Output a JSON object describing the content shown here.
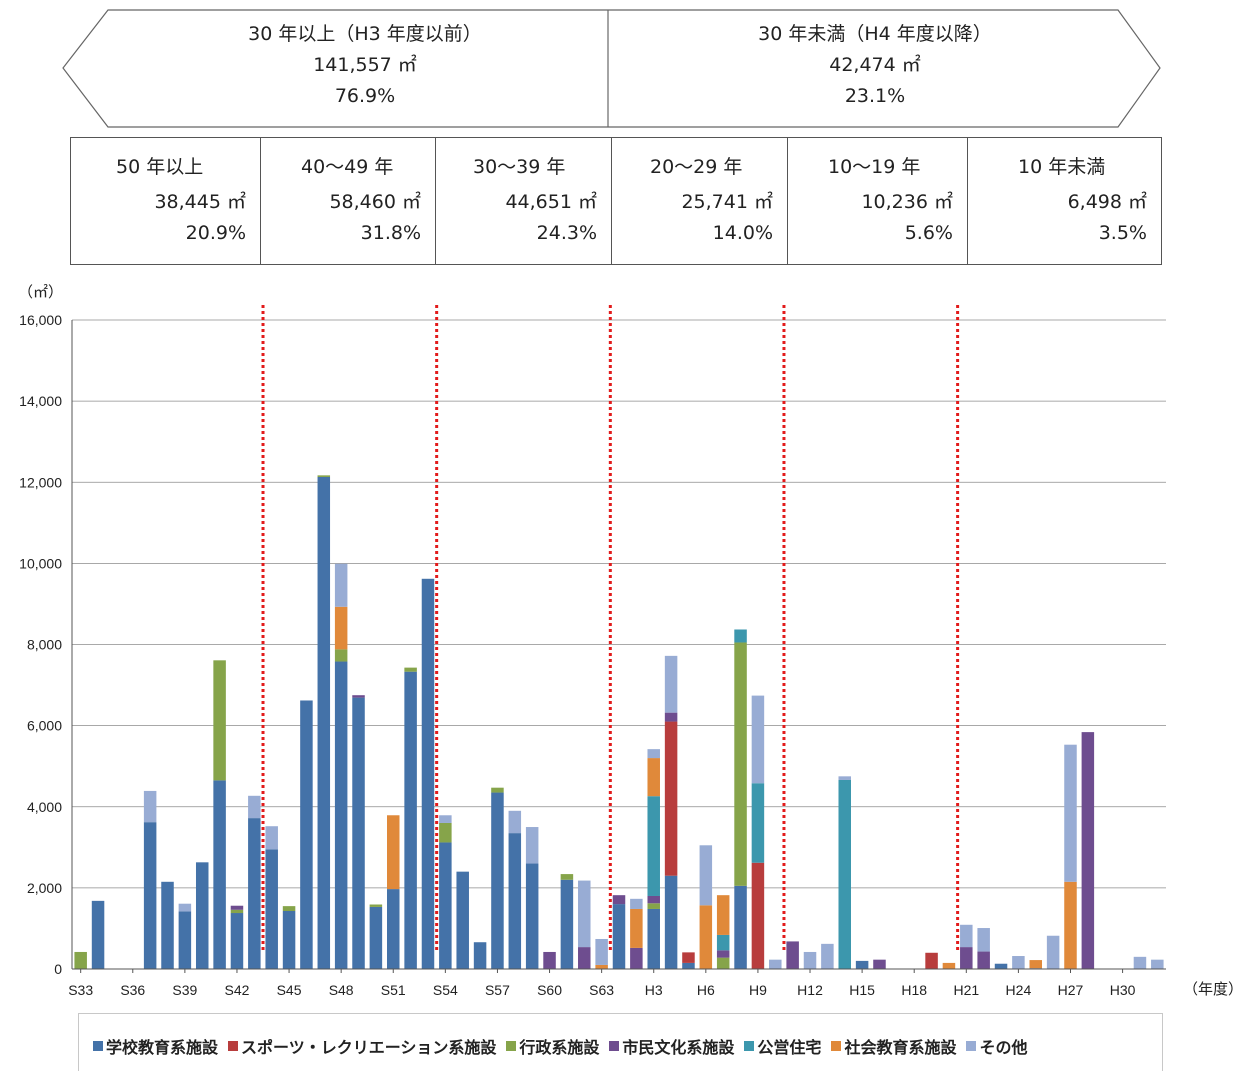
{
  "header": {
    "left": {
      "title": "30 年以上（H3 年度以前）",
      "area": "141,557 ㎡",
      "pct": "76.9%"
    },
    "right": {
      "title": "30 年未満（H4 年度以降）",
      "area": "42,474 ㎡",
      "pct": "23.1%"
    }
  },
  "age_groups": [
    {
      "label": "50 年以上",
      "area": "38,445 ㎡",
      "pct": "20.9%"
    },
    {
      "label": "40～49 年",
      "area": "58,460 ㎡",
      "pct": "31.8%"
    },
    {
      "label": "30～39 年",
      "area": "44,651 ㎡",
      "pct": "24.3%"
    },
    {
      "label": "20～29 年",
      "area": "25,741 ㎡",
      "pct": "14.0%"
    },
    {
      "label": "10～19 年",
      "area": "10,236 ㎡",
      "pct": "5.6%"
    },
    {
      "label": "10 年未満",
      "area": "6,498 ㎡",
      "pct": "3.5%"
    }
  ],
  "chart_data": {
    "type": "bar",
    "stacked": true,
    "ylabel": "（㎡）",
    "xlabel": "（年度）",
    "ylim": [
      0,
      16000
    ],
    "yticks": [
      "0",
      "2,000",
      "4,000",
      "6,000",
      "8,000",
      "10,000",
      "12,000",
      "14,000",
      "16,000"
    ],
    "grid": true,
    "legend_position": "bottom",
    "categories": [
      "S33",
      "S34",
      "S35",
      "S36",
      "S37",
      "S38",
      "S39",
      "S40",
      "S41",
      "S42",
      "S43",
      "S44",
      "S45",
      "S46",
      "S47",
      "S48",
      "S49",
      "S50",
      "S51",
      "S52",
      "S53",
      "S54",
      "S55",
      "S56",
      "S57",
      "S58",
      "S59",
      "S60",
      "S61",
      "S62",
      "S63",
      "H1",
      "H2",
      "H3",
      "H4",
      "H5",
      "H6",
      "H7",
      "H8",
      "H9",
      "H10",
      "H11",
      "H12",
      "H13",
      "H14",
      "H15",
      "H16",
      "H17",
      "H18",
      "H19",
      "H20",
      "H21",
      "H22",
      "H23",
      "H24",
      "H25",
      "H26",
      "H27",
      "H28",
      "H29",
      "H30",
      "R1",
      "R2"
    ],
    "tick_labels": [
      "S33",
      "S36",
      "S39",
      "S42",
      "S45",
      "S48",
      "S51",
      "S54",
      "S57",
      "S60",
      "S63",
      "H3",
      "H6",
      "H9",
      "H12",
      "H15",
      "H18",
      "H21",
      "H24",
      "H27",
      "H30"
    ],
    "tick_label_categories": [
      "S33",
      "S36",
      "S39",
      "S42",
      "S45",
      "S48",
      "S51",
      "S54",
      "S57",
      "S60",
      "S63",
      "H3",
      "H6",
      "H9",
      "H12",
      "H15",
      "H18",
      "H21",
      "H24",
      "H27",
      "H30"
    ],
    "series": [
      {
        "name": "学校教育系施設",
        "color": "#4472a8",
        "values": [
          0,
          1680,
          0,
          0,
          3620,
          2150,
          1420,
          2630,
          4650,
          1380,
          3720,
          2950,
          1430,
          6620,
          12130,
          7580,
          6690,
          1530,
          1970,
          7330,
          9620,
          3120,
          2400,
          660,
          4350,
          3350,
          2600,
          0,
          2200,
          0,
          0,
          1600,
          0,
          1480,
          2300,
          150,
          0,
          0,
          2050,
          0,
          0,
          0,
          0,
          0,
          0,
          200,
          0,
          0,
          0,
          0,
          0,
          0,
          0,
          130,
          0,
          20,
          0,
          0,
          0,
          0,
          0,
          0,
          0
        ]
      },
      {
        "name": "スポーツ・レクリエーション系施設",
        "color": "#b83d3d",
        "values": [
          0,
          0,
          0,
          0,
          0,
          0,
          0,
          0,
          0,
          0,
          0,
          0,
          0,
          0,
          0,
          0,
          0,
          0,
          0,
          0,
          0,
          0,
          0,
          0,
          0,
          0,
          0,
          0,
          0,
          0,
          0,
          0,
          0,
          0,
          3800,
          260,
          0,
          0,
          0,
          2620,
          0,
          0,
          0,
          0,
          0,
          0,
          0,
          0,
          0,
          400,
          0,
          0,
          0,
          0,
          0,
          0,
          0,
          0,
          0,
          0,
          0,
          0,
          0
        ]
      },
      {
        "name": "行政系施設",
        "color": "#86a44a",
        "values": [
          420,
          0,
          0,
          0,
          0,
          0,
          0,
          0,
          2960,
          80,
          0,
          0,
          120,
          0,
          40,
          300,
          0,
          60,
          0,
          100,
          0,
          480,
          0,
          0,
          120,
          0,
          0,
          0,
          140,
          0,
          0,
          0,
          0,
          140,
          0,
          0,
          0,
          280,
          6000,
          0,
          0,
          0,
          0,
          0,
          0,
          0,
          0,
          0,
          0,
          0,
          0,
          0,
          0,
          0,
          0,
          0,
          0,
          0,
          0,
          0,
          0,
          0,
          0
        ]
      },
      {
        "name": "市民文化系施設",
        "color": "#6e4d8f",
        "values": [
          0,
          0,
          0,
          0,
          0,
          0,
          0,
          0,
          0,
          100,
          0,
          0,
          0,
          0,
          0,
          0,
          60,
          0,
          0,
          0,
          0,
          0,
          0,
          0,
          0,
          0,
          0,
          420,
          0,
          540,
          0,
          220,
          520,
          180,
          220,
          0,
          0,
          180,
          0,
          0,
          0,
          680,
          0,
          0,
          0,
          0,
          230,
          0,
          0,
          0,
          0,
          540,
          430,
          0,
          0,
          0,
          0,
          0,
          5840,
          0,
          0,
          0,
          0
        ]
      },
      {
        "name": "公営住宅",
        "color": "#3c97ad",
        "values": [
          0,
          0,
          0,
          0,
          0,
          0,
          0,
          0,
          0,
          0,
          0,
          0,
          0,
          0,
          0,
          0,
          0,
          0,
          0,
          0,
          0,
          0,
          0,
          0,
          0,
          0,
          0,
          0,
          0,
          0,
          0,
          0,
          0,
          2460,
          0,
          0,
          0,
          380,
          320,
          1960,
          0,
          0,
          0,
          0,
          4660,
          0,
          0,
          0,
          0,
          0,
          0,
          0,
          0,
          0,
          0,
          0,
          0,
          0,
          0,
          0,
          0,
          0,
          0
        ]
      },
      {
        "name": "社会教育系施設",
        "color": "#e0893a",
        "values": [
          0,
          0,
          0,
          0,
          0,
          0,
          0,
          0,
          0,
          0,
          0,
          0,
          0,
          0,
          0,
          1050,
          0,
          0,
          1820,
          0,
          0,
          0,
          0,
          0,
          0,
          0,
          0,
          0,
          0,
          0,
          100,
          0,
          960,
          940,
          0,
          0,
          1570,
          980,
          0,
          0,
          0,
          0,
          0,
          0,
          0,
          0,
          0,
          0,
          0,
          0,
          150,
          0,
          0,
          0,
          0,
          200,
          0,
          2150,
          0,
          0,
          0,
          0,
          0
        ]
      },
      {
        "name": "その他",
        "color": "#98acd4",
        "values": [
          0,
          0,
          0,
          0,
          770,
          0,
          190,
          0,
          0,
          0,
          550,
          570,
          0,
          0,
          0,
          1060,
          0,
          0,
          0,
          0,
          0,
          190,
          0,
          0,
          0,
          550,
          900,
          0,
          0,
          1640,
          640,
          0,
          250,
          220,
          1400,
          0,
          1480,
          0,
          0,
          2160,
          230,
          0,
          420,
          620,
          90,
          0,
          0,
          0,
          0,
          0,
          0,
          550,
          580,
          0,
          320,
          0,
          820,
          3380,
          0,
          0,
          0,
          300,
          230
        ]
      }
    ]
  }
}
